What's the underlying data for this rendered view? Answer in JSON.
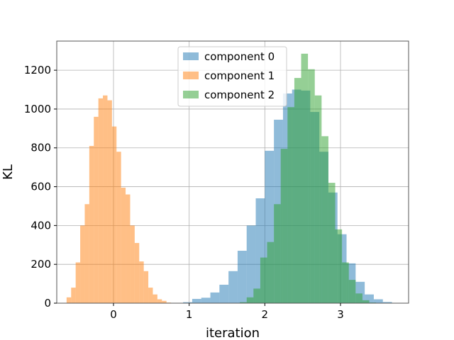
{
  "chart_data": {
    "type": "histogram",
    "xlabel": "iteration",
    "ylabel": "KL",
    "xlim": [
      -0.75,
      3.9
    ],
    "ylim": [
      0,
      1350
    ],
    "xticks": [
      0,
      1,
      2,
      3
    ],
    "yticks": [
      0,
      200,
      400,
      600,
      800,
      1000,
      1200
    ],
    "grid": true,
    "legend_position": "top-center",
    "series": [
      {
        "name": "component 0",
        "color": "#1f77b4",
        "opacity": 0.5,
        "bins": [
          [
            0.92,
            1.04,
            5
          ],
          [
            1.04,
            1.16,
            22
          ],
          [
            1.16,
            1.28,
            28
          ],
          [
            1.28,
            1.4,
            55
          ],
          [
            1.4,
            1.52,
            95
          ],
          [
            1.52,
            1.64,
            165
          ],
          [
            1.64,
            1.76,
            270
          ],
          [
            1.76,
            1.88,
            400
          ],
          [
            1.88,
            2.0,
            540
          ],
          [
            2.0,
            2.12,
            785
          ],
          [
            2.12,
            2.24,
            945
          ],
          [
            2.24,
            2.36,
            1080
          ],
          [
            2.36,
            2.48,
            1100
          ],
          [
            2.48,
            2.6,
            1095
          ],
          [
            2.6,
            2.72,
            985
          ],
          [
            2.72,
            2.84,
            780
          ],
          [
            2.84,
            2.96,
            570
          ],
          [
            2.96,
            3.08,
            355
          ],
          [
            3.08,
            3.2,
            205
          ],
          [
            3.2,
            3.32,
            110
          ],
          [
            3.32,
            3.44,
            45
          ],
          [
            3.44,
            3.56,
            20
          ],
          [
            3.56,
            3.68,
            6
          ]
        ]
      },
      {
        "name": "component 1",
        "color": "#ff7f0e",
        "opacity": 0.5,
        "bins": [
          [
            -0.62,
            -0.56,
            30
          ],
          [
            -0.56,
            -0.5,
            80
          ],
          [
            -0.5,
            -0.44,
            210
          ],
          [
            -0.44,
            -0.38,
            400
          ],
          [
            -0.38,
            -0.32,
            510
          ],
          [
            -0.32,
            -0.26,
            810
          ],
          [
            -0.26,
            -0.2,
            960
          ],
          [
            -0.2,
            -0.14,
            1055
          ],
          [
            -0.14,
            -0.08,
            1070
          ],
          [
            -0.08,
            -0.02,
            1045
          ],
          [
            -0.02,
            0.04,
            910
          ],
          [
            0.04,
            0.1,
            780
          ],
          [
            0.1,
            0.16,
            595
          ],
          [
            0.16,
            0.22,
            560
          ],
          [
            0.22,
            0.28,
            400
          ],
          [
            0.28,
            0.34,
            310
          ],
          [
            0.34,
            0.4,
            215
          ],
          [
            0.4,
            0.46,
            165
          ],
          [
            0.46,
            0.52,
            80
          ],
          [
            0.52,
            0.58,
            45
          ],
          [
            0.58,
            0.64,
            20
          ],
          [
            0.64,
            0.7,
            12
          ],
          [
            0.7,
            0.76,
            3
          ]
        ]
      },
      {
        "name": "component 2",
        "color": "#2ca02c",
        "opacity": 0.5,
        "bins": [
          [
            1.67,
            1.76,
            5
          ],
          [
            1.76,
            1.85,
            30
          ],
          [
            1.85,
            1.94,
            75
          ],
          [
            1.94,
            2.03,
            235
          ],
          [
            2.03,
            2.12,
            315
          ],
          [
            2.12,
            2.21,
            510
          ],
          [
            2.21,
            2.3,
            795
          ],
          [
            2.3,
            2.39,
            1010
          ],
          [
            2.39,
            2.48,
            1160
          ],
          [
            2.48,
            2.57,
            1285
          ],
          [
            2.57,
            2.66,
            1205
          ],
          [
            2.66,
            2.75,
            1070
          ],
          [
            2.75,
            2.84,
            860
          ],
          [
            2.84,
            2.93,
            620
          ],
          [
            2.93,
            3.02,
            380
          ],
          [
            3.02,
            3.11,
            210
          ],
          [
            3.11,
            3.2,
            120
          ],
          [
            3.2,
            3.29,
            50
          ],
          [
            3.29,
            3.38,
            15
          ],
          [
            3.38,
            3.47,
            3
          ]
        ]
      }
    ]
  }
}
